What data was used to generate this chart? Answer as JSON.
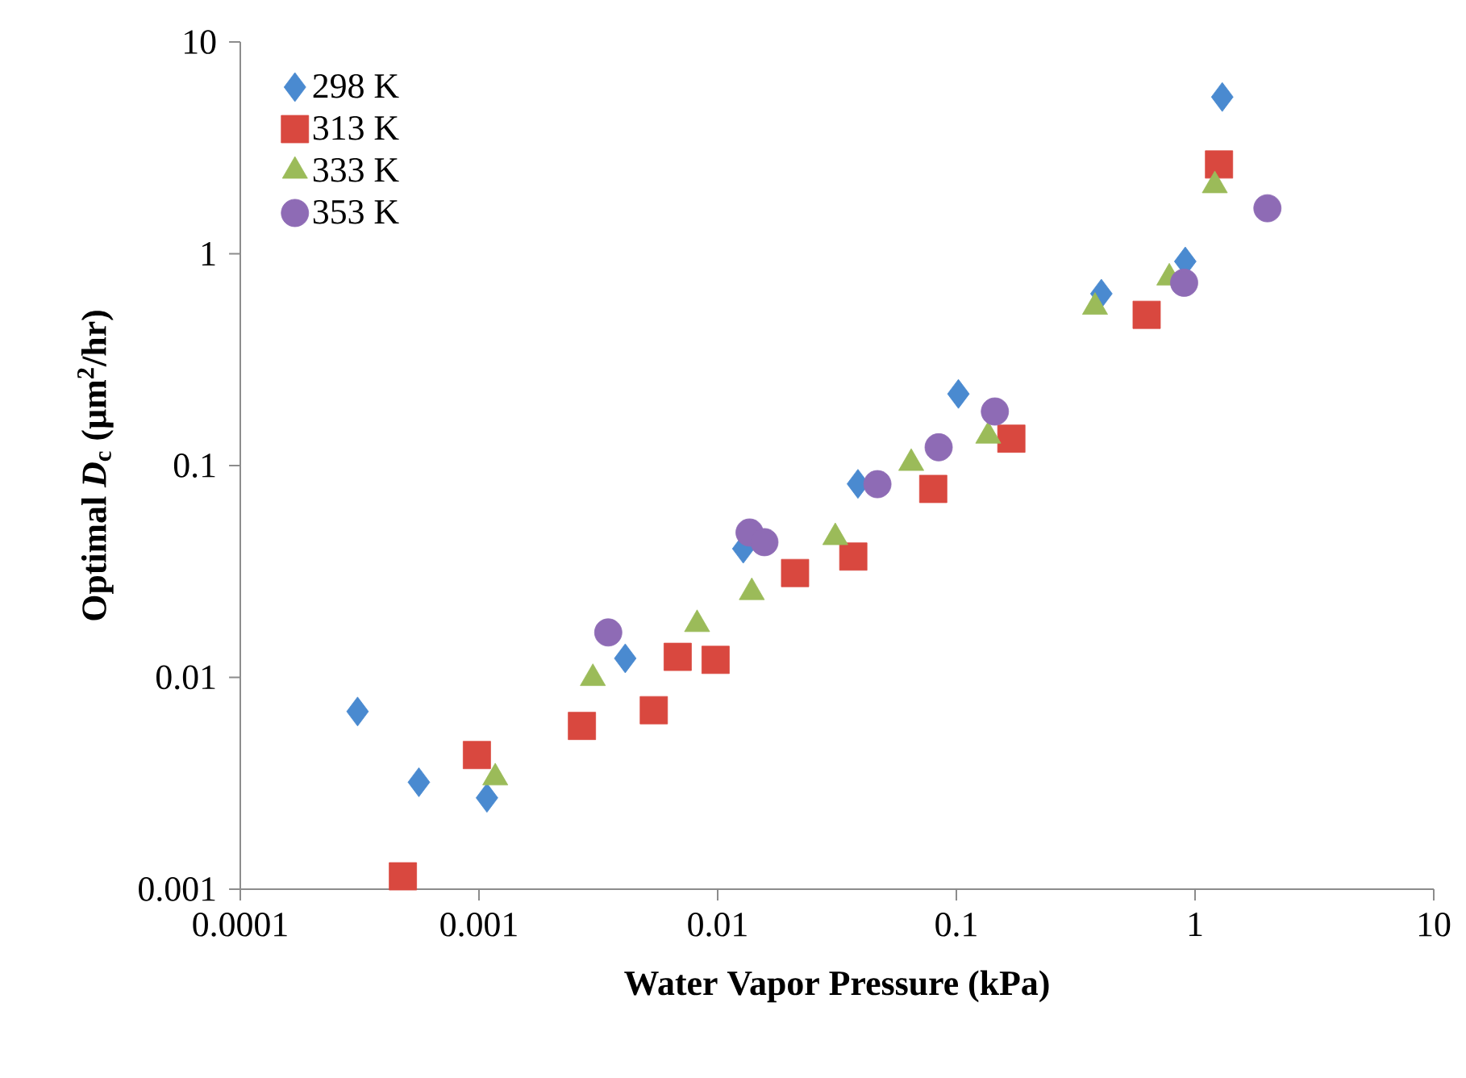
{
  "chart_data": {
    "type": "scatter",
    "xlabel": "Water Vapor Pressure (kPa)",
    "ylabel": "Optimal *D*$_{c}$ (µm$^{2}$/hr)",
    "log": "xy",
    "xlim": [
      0.0001,
      10
    ],
    "ylim": [
      0.001,
      10
    ],
    "xticks": [
      0.0001,
      0.001,
      0.01,
      0.1,
      1,
      10
    ],
    "yticks": [
      0.001,
      0.01,
      0.1,
      1,
      10
    ],
    "grid": false,
    "legend": "top left",
    "series": [
      {
        "name": "298 K",
        "color": "#4a8ad0",
        "marker": "diamond",
        "x": [
          0.00031,
          0.00056,
          0.00108,
          0.0041,
          0.0128,
          0.0387,
          0.102,
          0.405,
          0.91,
          1.3
        ],
        "values": [
          0.0069,
          0.0032,
          0.0027,
          0.0123,
          0.0405,
          0.082,
          0.218,
          0.648,
          0.92,
          5.5
        ]
      },
      {
        "name": "313 K",
        "color": "#d9483f",
        "marker": "square",
        "x": [
          0.00048,
          0.00098,
          0.0027,
          0.0054,
          0.0068,
          0.0098,
          0.0211,
          0.037,
          0.08,
          0.17,
          0.627,
          1.26
        ],
        "values": [
          0.00115,
          0.0043,
          0.0059,
          0.007,
          0.0125,
          0.0121,
          0.0311,
          0.0372,
          0.0776,
          0.134,
          0.515,
          2.64
        ]
      },
      {
        "name": "333 K",
        "color": "#9bbb59",
        "marker": "triangle",
        "x": [
          0.00117,
          0.003,
          0.0082,
          0.0139,
          0.0311,
          0.0647,
          0.136,
          0.381,
          0.78,
          1.21
        ],
        "values": [
          0.00336,
          0.0099,
          0.0178,
          0.0252,
          0.0458,
          0.1026,
          0.138,
          0.56,
          0.77,
          2.1
        ]
      },
      {
        "name": "353 K",
        "color": "#8e6bb5",
        "marker": "circle",
        "x": [
          0.00348,
          0.0136,
          0.0157,
          0.0467,
          0.0843,
          0.145,
          0.9,
          2.01
        ],
        "values": [
          0.0163,
          0.0483,
          0.0435,
          0.0817,
          0.122,
          0.18,
          0.73,
          1.64
        ]
      }
    ]
  }
}
